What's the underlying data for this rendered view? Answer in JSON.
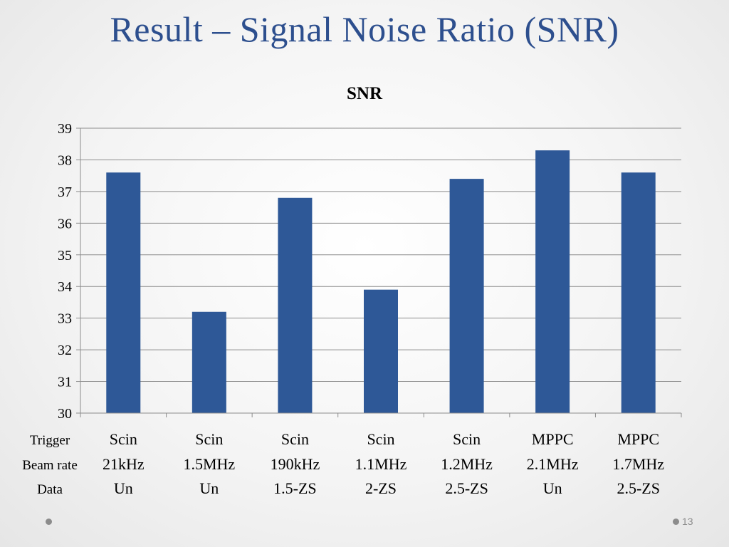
{
  "slide": {
    "title": "Result – Signal Noise Ratio (SNR)",
    "page_number": "13"
  },
  "row_labels": [
    "Trigger",
    "Beam rate",
    "Data"
  ],
  "colors": {
    "bar": "#2e5897",
    "title": "#2d4f8e",
    "grid": "#8c8c8c"
  },
  "chart_data": {
    "type": "bar",
    "title": "SNR",
    "xlabel": "",
    "ylabel": "",
    "ylim": [
      30,
      39
    ],
    "y_ticks": [
      30,
      31,
      32,
      33,
      34,
      35,
      36,
      37,
      38,
      39
    ],
    "grid": true,
    "legend": "none",
    "categories": [
      [
        "Scin",
        "21kHz",
        "Un"
      ],
      [
        "Scin",
        "1.5MHz",
        "Un"
      ],
      [
        "Scin",
        "190kHz",
        "1.5-ZS"
      ],
      [
        "Scin",
        "1.1MHz",
        "2-ZS"
      ],
      [
        "Scin",
        "1.2MHz",
        "2.5-ZS"
      ],
      [
        "MPPC",
        "2.1MHz",
        "Un"
      ],
      [
        "MPPC",
        "1.7MHz",
        "2.5-ZS"
      ]
    ],
    "values": [
      37.6,
      33.2,
      36.8,
      33.9,
      37.4,
      38.3,
      37.6
    ]
  }
}
